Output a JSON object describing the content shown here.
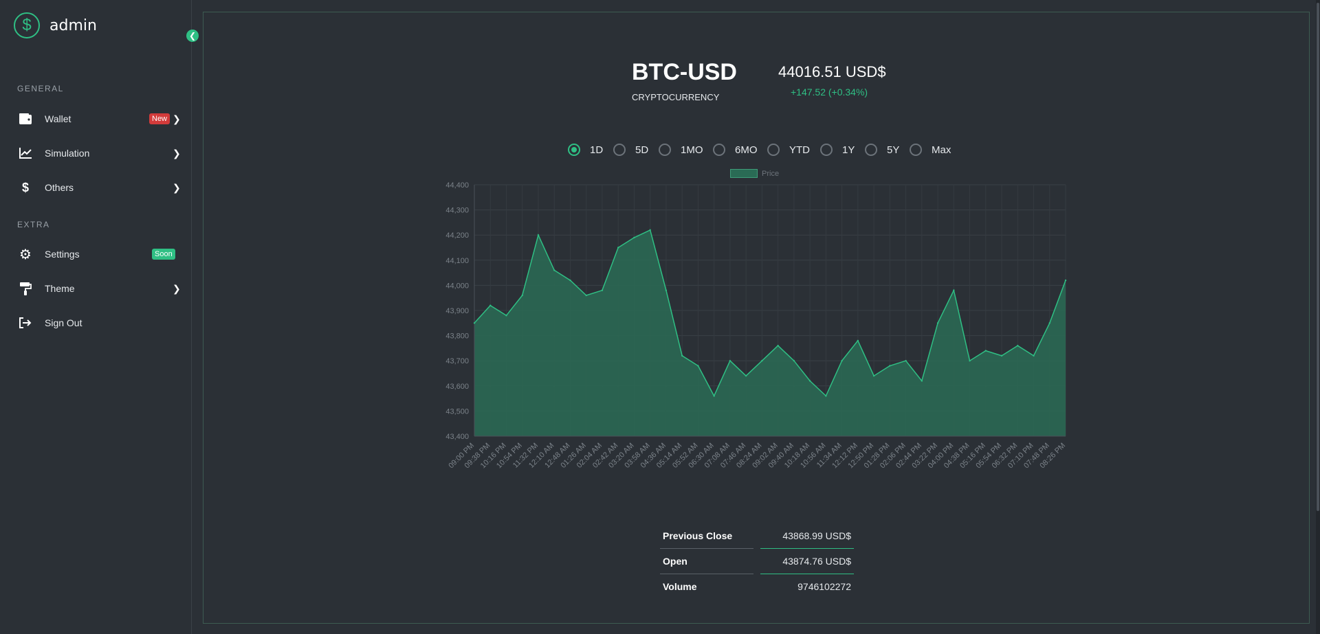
{
  "brand": {
    "name": "admin",
    "logo_icon": "dollar-circle-icon"
  },
  "sidebar": {
    "sections": [
      {
        "label": "GENERAL",
        "items": [
          {
            "label": "Wallet",
            "icon": "wallet-icon",
            "badge": "New",
            "chevron": true
          },
          {
            "label": "Simulation",
            "icon": "chart-line-icon",
            "chevron": true
          },
          {
            "label": "Others",
            "icon": "dollar-icon",
            "chevron": true
          }
        ]
      },
      {
        "label": "EXTRA",
        "items": [
          {
            "label": "Settings",
            "icon": "gear-icon",
            "badge": "Soon"
          },
          {
            "label": "Theme",
            "icon": "paint-roller-icon",
            "chevron": true
          },
          {
            "label": "Sign Out",
            "icon": "sign-out-icon"
          }
        ]
      }
    ]
  },
  "quote": {
    "symbol": "BTC-USD",
    "category": "CRYPTOCURRENCY",
    "price": "44016.51 USD$",
    "change": "+147.52 (+0.34%)"
  },
  "ranges": {
    "options": [
      "1D",
      "5D",
      "1MO",
      "6MO",
      "YTD",
      "1Y",
      "5Y",
      "Max"
    ],
    "selected": "1D"
  },
  "stats": [
    {
      "label": "Previous Close",
      "value": "43868.99 USD$"
    },
    {
      "label": "Open",
      "value": "43874.76 USD$"
    },
    {
      "label": "Volume",
      "value": "9746102272"
    }
  ],
  "colors": {
    "accent": "#2fbf84",
    "fill": "#2a6b55",
    "danger": "#d23b3b"
  },
  "chart_data": {
    "type": "area",
    "legend": "Price",
    "legend_position": "top-center",
    "grid": true,
    "ylim": [
      43400,
      44400
    ],
    "yticks": [
      "44,400",
      "44,300",
      "44,200",
      "44,100",
      "44,000",
      "43,900",
      "43,800",
      "43,700",
      "43,600",
      "43,500",
      "43,400"
    ],
    "categories": [
      "09:00 PM",
      "09:38 PM",
      "10:16 PM",
      "10:54 PM",
      "11:32 PM",
      "12:10 AM",
      "12:48 AM",
      "01:26 AM",
      "02:04 AM",
      "02:42 AM",
      "03:20 AM",
      "03:58 AM",
      "04:36 AM",
      "05:14 AM",
      "05:52 AM",
      "06:30 AM",
      "07:08 AM",
      "07:46 AM",
      "08:24 AM",
      "09:02 AM",
      "09:40 AM",
      "10:18 AM",
      "10:56 AM",
      "11:34 AM",
      "12:12 PM",
      "12:50 PM",
      "01:28 PM",
      "02:06 PM",
      "02:44 PM",
      "03:22 PM",
      "04:00 PM",
      "04:38 PM",
      "05:16 PM",
      "05:54 PM",
      "06:32 PM",
      "07:10 PM",
      "07:48 PM",
      "08:26 PM"
    ],
    "series": [
      {
        "name": "Price",
        "values": [
          43850,
          43920,
          43880,
          43960,
          44200,
          44060,
          44020,
          43960,
          43980,
          44150,
          44190,
          44220,
          43980,
          43720,
          43680,
          43560,
          43700,
          43640,
          43700,
          43760,
          43700,
          43620,
          43560,
          43700,
          43780,
          43640,
          43680,
          43700,
          43620,
          43850,
          43980,
          43700,
          43740,
          43720,
          43760,
          43720,
          43850,
          44020
        ]
      }
    ]
  }
}
